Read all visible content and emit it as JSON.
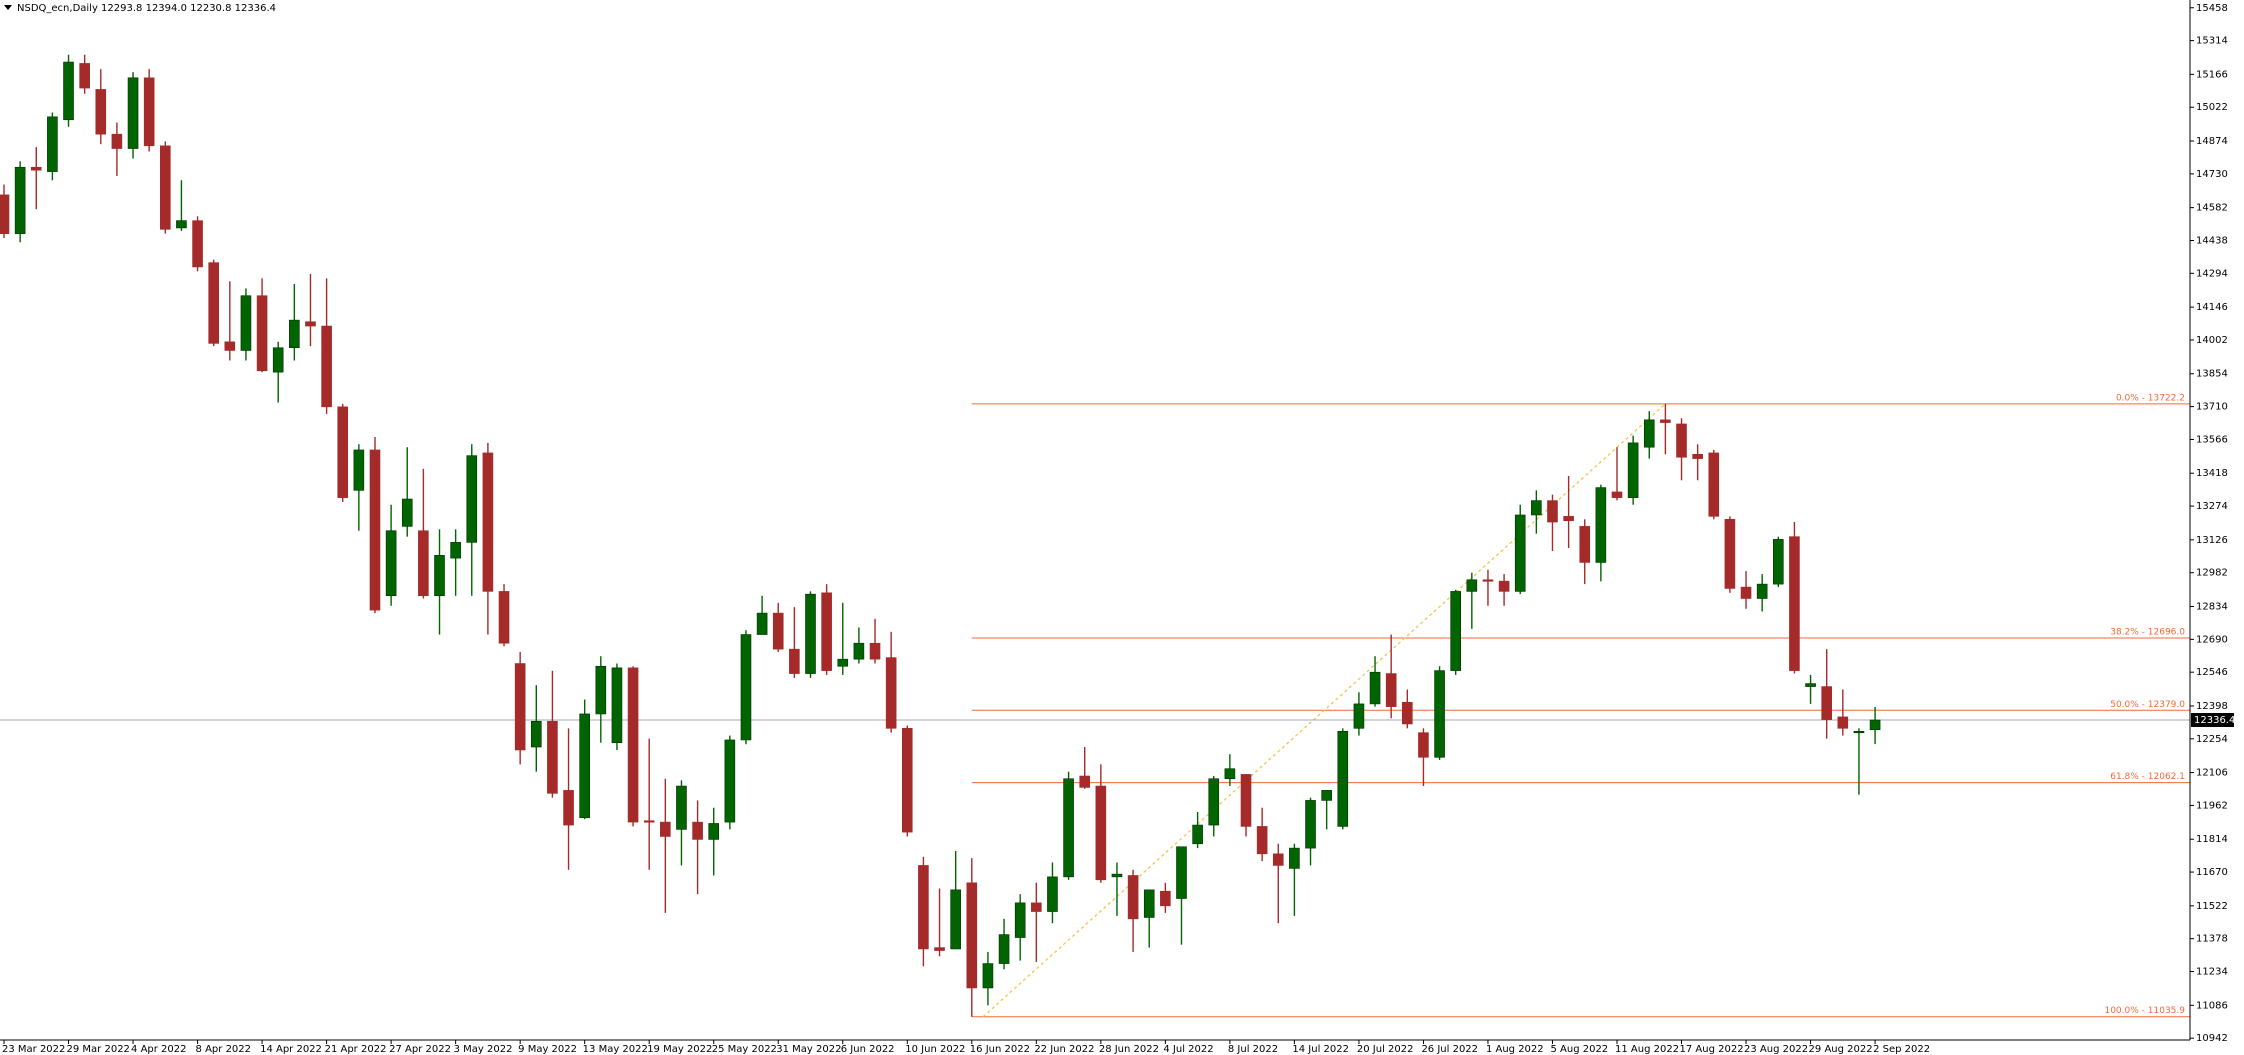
{
  "chart_data": {
    "type": "candlestick",
    "title": "NSDQ_ecn,Daily  12293.8 12394.0 12230.8 12336.4",
    "categories": [
      "23 Mar 2022",
      null,
      null,
      null,
      "29 Mar 2022",
      null,
      null,
      null,
      "4 Apr 2022",
      null,
      null,
      null,
      "8 Apr 2022",
      null,
      null,
      null,
      "14 Apr 2022",
      null,
      null,
      null,
      "21 Apr 2022",
      null,
      null,
      null,
      "27 Apr 2022",
      null,
      null,
      null,
      "3 May 2022",
      null,
      null,
      null,
      "9 May 2022",
      null,
      null,
      null,
      "13 May 2022",
      null,
      null,
      null,
      "19 May 2022",
      null,
      null,
      null,
      "25 May 2022",
      null,
      null,
      null,
      "31 May 2022",
      null,
      null,
      null,
      "6 Jun 2022",
      null,
      null,
      null,
      "10 Jun 2022",
      null,
      null,
      null,
      "16 Jun 2022",
      null,
      null,
      null,
      "22 Jun 2022",
      null,
      null,
      null,
      "28 Jun 2022",
      null,
      null,
      null,
      "4 Jul 2022",
      null,
      null,
      null,
      "8 Jul 2022",
      null,
      null,
      null,
      "14 Jul 2022",
      null,
      null,
      null,
      "20 Jul 2022",
      null,
      null,
      null,
      "26 Jul 2022",
      null,
      null,
      null,
      "1 Aug 2022",
      null,
      null,
      null,
      "5 Aug 2022",
      null,
      null,
      null,
      "11 Aug 2022",
      null,
      null,
      null,
      "17 Aug 2022",
      null,
      null,
      null,
      "23 Aug 2022",
      null,
      null,
      null,
      "29 Aug 2022",
      null,
      null,
      null,
      "2 Sep 2022"
    ],
    "open": [
      14638,
      14468,
      14759,
      14740,
      14967,
      15214,
      15100,
      14904,
      14841,
      15151,
      14853,
      14493,
      14525,
      14341,
      13994,
      13956,
      14196,
      13861,
      13968,
      14082,
      14063,
      13709,
      13343,
      13520,
      12881,
      13185,
      13166,
      12881,
      13046,
      13115,
      13507,
      12900,
      12584,
      12218,
      12331,
      12028,
      11908,
      12363,
      12237,
      12565,
      11895,
      11889,
      11857,
      11889,
      11813,
      11889,
      12249,
      12711,
      12805,
      12647,
      12540,
      12894,
      12572,
      12603,
      12673,
      12610,
      12300,
      11699,
      11339,
      11333,
      11623,
      11162,
      11269,
      11383,
      11535,
      11497,
      11649,
      12091,
      12047,
      11649,
      11655,
      11471,
      11586,
      11554,
      11794,
      11876,
      12079,
      12098,
      11870,
      11750,
      11686,
      11775,
      11984,
      11870,
      12300,
      12407,
      12540,
      12414,
      12281,
      12173,
      12553,
      12900,
      12951,
      12945,
      12900,
      13235,
      13298,
      13229,
      13185,
      13027,
      13336,
      13311,
      13532,
      13652,
      13634,
      13501,
      13507,
      13216,
      12919,
      12869,
      12932,
      13140,
      12483,
      12483,
      12350,
      12281,
      12293.8
    ],
    "high": [
      14683,
      14785,
      14847,
      14999,
      15252,
      15252,
      15189,
      14955,
      15176,
      15189,
      14872,
      14702,
      14544,
      14354,
      14259,
      14228,
      14272,
      13994,
      14247,
      14291,
      14272,
      13722,
      13545,
      13577,
      13280,
      13532,
      13437,
      13172,
      13172,
      13545,
      13551,
      12932,
      12635,
      12489,
      12552,
      12300,
      12426,
      12616,
      12584,
      12572,
      12255,
      12079,
      12072,
      11984,
      11952,
      12268,
      12730,
      12881,
      12850,
      12831,
      12900,
      12932,
      12850,
      12742,
      12780,
      12723,
      12312,
      11737,
      11598,
      11762,
      11731,
      11320,
      11465,
      11573,
      11623,
      11712,
      12110,
      12218,
      12142,
      11712,
      11680,
      11592,
      11623,
      11781,
      11933,
      12091,
      12186,
      12098,
      11952,
      11794,
      11794,
      11996,
      12028,
      12300,
      12458,
      12616,
      12711,
      12470,
      12300,
      12572,
      12907,
      12982,
      12995,
      12976,
      13280,
      13343,
      13324,
      13406,
      13216,
      13368,
      13532,
      13583,
      13690,
      13722.2,
      13659,
      13545,
      13520,
      13229,
      12989,
      12976,
      13140,
      13204,
      12534,
      12647,
      12470,
      12300,
      12394.0
    ],
    "low": [
      14449,
      14430,
      14575,
      14702,
      14936,
      15081,
      14860,
      14721,
      14797,
      14828,
      14468,
      14480,
      14303,
      13975,
      13912,
      13912,
      13861,
      13728,
      13912,
      13975,
      13678,
      13292,
      13166,
      12805,
      12837,
      13140,
      12869,
      12711,
      12881,
      12881,
      12711,
      12660,
      12142,
      12110,
      11996,
      11680,
      11902,
      12237,
      12205,
      11870,
      11680,
      11491,
      11699,
      11573,
      11655,
      11857,
      12230,
      12711,
      12635,
      12521,
      12521,
      12534,
      12534,
      12584,
      12584,
      12281,
      11826,
      11257,
      11301,
      11333,
      11035.9,
      11086,
      11244,
      11282,
      11276,
      11446,
      11636,
      12035,
      11623,
      11478,
      11320,
      11339,
      11491,
      11352,
      11775,
      11826,
      12047,
      11826,
      11718,
      11446,
      11478,
      11699,
      11857,
      11857,
      12268,
      12395,
      12344,
      12300,
      12047,
      12161,
      12534,
      12736,
      12837,
      12837,
      12888,
      13153,
      13077,
      13090,
      12932,
      12944,
      13299,
      13280,
      13482,
      13501,
      13387,
      13387,
      13216,
      12894,
      12824,
      12812,
      12919,
      12540,
      12407,
      12255,
      12268,
      12009,
      12230.8
    ],
    "close": [
      14468,
      14759,
      14746,
      14980,
      15220,
      15106,
      14904,
      14841,
      15151,
      14853,
      14487,
      14525,
      14322,
      13987,
      13956,
      14196,
      13867,
      13968,
      14089,
      14063,
      13709,
      13311,
      13520,
      12818,
      13166,
      13305,
      12881,
      13058,
      13115,
      13495,
      12900,
      12673,
      12205,
      12331,
      12015,
      11876,
      12363,
      12572,
      12565,
      11889,
      11889,
      11826,
      12047,
      11813,
      11883,
      12249,
      12711,
      12805,
      12647,
      12540,
      12888,
      12553,
      12603,
      12673,
      12603,
      12300,
      11845,
      11333,
      11326,
      11592,
      11162,
      11269,
      11396,
      11535,
      11497,
      11649,
      12079,
      12041,
      11636,
      11661,
      11465,
      11592,
      11522,
      11781,
      11876,
      12079,
      12123,
      11870,
      11750,
      11699,
      11775,
      11984,
      12028,
      12287,
      12407,
      12546,
      12395,
      12319,
      12173,
      12553,
      12900,
      12951,
      12945,
      12900,
      13235,
      13298,
      13204,
      13210,
      13027,
      13355,
      13311,
      13551,
      13652,
      13640,
      13488,
      13482,
      13229,
      12913,
      12869,
      12932,
      13128,
      12553,
      12496,
      12338,
      12300,
      12287,
      12336.4
    ],
    "up_color": "#006400",
    "down_color": "#a52a2a",
    "ylim": [
      10934,
      15492
    ],
    "yticks": [
      15458,
      15314,
      15166,
      15022,
      14874,
      14730,
      14582,
      14438,
      14294,
      14146,
      14002,
      13854,
      13710,
      13566,
      13418,
      13274,
      13126,
      12982,
      12834,
      12690,
      12546,
      12398,
      12254,
      12106,
      11962,
      11814,
      11670,
      11522,
      11378,
      11234,
      11086,
      10942
    ],
    "current_price": 12336.4,
    "fibo": {
      "color": "#f06a3c",
      "trend_color": "#f5c542",
      "levels": [
        {
          "label": "0.0% - 13722.2",
          "value": 13722.2
        },
        {
          "label": "38.2% - 12696.0",
          "value": 12696.0
        },
        {
          "label": "50.0% - 12379.0",
          "value": 12379.0
        },
        {
          "label": "61.8% - 12062.1",
          "value": 12062.1
        },
        {
          "label": "100.0% - 11035.9",
          "value": 11035.9
        }
      ]
    }
  }
}
